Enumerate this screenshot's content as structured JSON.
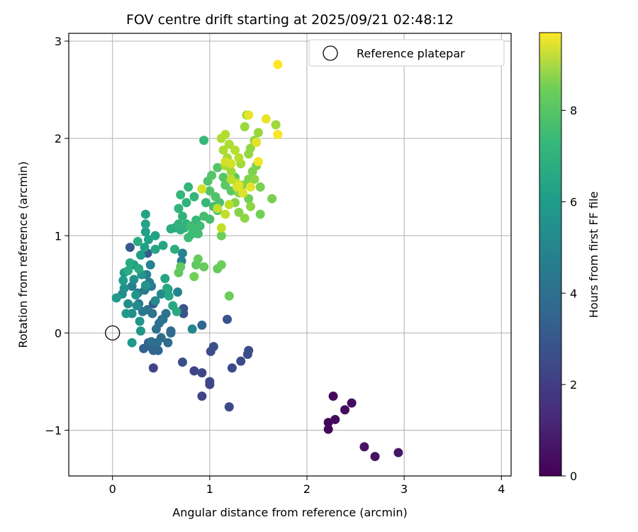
{
  "chart_data": {
    "type": "scatter",
    "title": "FOV centre drift starting at 2025/09/21 02:48:12",
    "xlabel": "Angular distance from reference (arcmin)",
    "ylabel": "Rotation from reference (arcmin)",
    "xlim": [
      -0.45,
      4.1
    ],
    "ylim": [
      -1.47,
      3.08
    ],
    "xticks": [
      0,
      1,
      2,
      3,
      4
    ],
    "xtick_labels": [
      "0",
      "1",
      "2",
      "3",
      "4"
    ],
    "yticks": [
      -1,
      0,
      1,
      2,
      3
    ],
    "ytick_labels": [
      "−1",
      "0",
      "1",
      "2",
      "3"
    ],
    "grid": true,
    "legend": {
      "position": "upper right",
      "entries": [
        "Reference platepar"
      ]
    },
    "reference_point": {
      "x": 0,
      "y": 0,
      "label": "Reference platepar"
    },
    "colorbar": {
      "label": "Hours from first FF file",
      "colormap": "viridis",
      "range": [
        0,
        9.7
      ],
      "ticks": [
        0,
        2,
        4,
        6,
        8
      ],
      "tick_labels": [
        "0",
        "2",
        "4",
        "6",
        "8"
      ]
    },
    "points": [
      [
        2.22,
        -0.92,
        0.1
      ],
      [
        2.22,
        -0.99,
        0.2
      ],
      [
        2.27,
        -0.65,
        0.2
      ],
      [
        2.29,
        -0.89,
        0.3
      ],
      [
        2.39,
        -0.79,
        0.3
      ],
      [
        2.46,
        -0.72,
        0.4
      ],
      [
        2.59,
        -1.17,
        0.5
      ],
      [
        2.7,
        -1.27,
        0.5
      ],
      [
        2.94,
        -1.23,
        0.6
      ],
      [
        0.42,
        -0.36,
        2.0
      ],
      [
        0.84,
        -0.39,
        2.0
      ],
      [
        0.92,
        -0.65,
        2.0
      ],
      [
        0.92,
        -0.41,
        2.1
      ],
      [
        1.0,
        -0.53,
        2.1
      ],
      [
        1.0,
        -0.5,
        2.1
      ],
      [
        1.2,
        -0.76,
        2.2
      ],
      [
        1.23,
        -0.36,
        2.2
      ],
      [
        1.32,
        -0.29,
        2.2
      ],
      [
        1.39,
        -0.22,
        2.3
      ],
      [
        1.4,
        -0.18,
        2.3
      ],
      [
        1.01,
        -0.19,
        2.3
      ],
      [
        1.04,
        -0.14,
        2.4
      ],
      [
        0.72,
        -0.3,
        2.4
      ],
      [
        1.18,
        0.14,
        2.5
      ],
      [
        0.73,
        0.25,
        2.5
      ],
      [
        0.73,
        0.2,
        2.6
      ],
      [
        0.51,
        0.14,
        2.6
      ],
      [
        0.18,
        0.88,
        2.7
      ],
      [
        0.36,
        0.82,
        2.7
      ],
      [
        0.42,
        0.3,
        2.7
      ],
      [
        0.32,
        -0.16,
        3.0
      ],
      [
        0.37,
        -0.1,
        3.0
      ],
      [
        0.42,
        -0.18,
        3.1
      ],
      [
        0.39,
        -0.14,
        3.1
      ],
      [
        0.47,
        -0.18,
        3.2
      ],
      [
        0.92,
        0.08,
        3.2
      ],
      [
        0.6,
        0.0,
        3.3
      ],
      [
        0.6,
        0.02,
        3.3
      ],
      [
        0.57,
        -0.1,
        3.4
      ],
      [
        0.5,
        -0.05,
        3.4
      ],
      [
        0.46,
        -0.1,
        3.5
      ],
      [
        0.4,
        -0.09,
        3.5
      ],
      [
        0.45,
        0.04,
        3.6
      ],
      [
        0.48,
        0.1,
        3.6
      ],
      [
        0.52,
        0.14,
        3.7
      ],
      [
        0.55,
        0.2,
        3.7
      ],
      [
        0.41,
        0.2,
        3.8
      ],
      [
        0.36,
        0.24,
        3.8
      ],
      [
        0.31,
        0.22,
        3.9
      ],
      [
        0.27,
        0.3,
        3.9
      ],
      [
        0.26,
        0.41,
        4.0
      ],
      [
        0.33,
        0.44,
        4.0
      ],
      [
        0.4,
        0.48,
        4.1
      ],
      [
        0.38,
        0.52,
        4.1
      ],
      [
        0.2,
        0.48,
        4.2
      ],
      [
        0.35,
        0.6,
        4.2
      ],
      [
        0.39,
        0.7,
        4.3
      ],
      [
        0.71,
        0.74,
        4.3
      ],
      [
        0.72,
        0.82,
        4.4
      ],
      [
        0.67,
        0.42,
        4.4
      ],
      [
        0.82,
        0.04,
        4.5
      ],
      [
        0.57,
        0.45,
        4.5
      ],
      [
        0.44,
        0.33,
        4.6
      ],
      [
        0.5,
        0.4,
        4.6
      ],
      [
        0.25,
        0.28,
        4.7
      ],
      [
        0.2,
        0.2,
        4.7
      ],
      [
        0.16,
        0.3,
        4.8
      ],
      [
        0.1,
        0.4,
        4.8
      ],
      [
        0.12,
        0.46,
        4.9
      ],
      [
        0.22,
        0.55,
        4.9
      ],
      [
        0.3,
        0.6,
        5.0
      ],
      [
        0.34,
        0.49,
        5.0
      ],
      [
        0.24,
        0.39,
        5.1
      ],
      [
        0.28,
        0.12,
        5.1
      ],
      [
        0.29,
        0.02,
        5.1
      ],
      [
        0.2,
        -0.1,
        5.2
      ],
      [
        0.14,
        0.2,
        5.2
      ],
      [
        0.04,
        0.36,
        5.3
      ],
      [
        0.11,
        0.54,
        5.3
      ],
      [
        0.12,
        0.62,
        5.3
      ],
      [
        0.22,
        0.7,
        5.4
      ],
      [
        0.29,
        0.8,
        5.4
      ],
      [
        0.33,
        0.88,
        5.5
      ],
      [
        0.37,
        0.96,
        5.5
      ],
      [
        0.34,
        1.04,
        5.5
      ],
      [
        0.34,
        1.12,
        5.6
      ],
      [
        0.34,
        1.22,
        5.6
      ],
      [
        0.44,
        1.0,
        5.6
      ],
      [
        0.44,
        0.86,
        5.7
      ],
      [
        0.52,
        0.9,
        5.7
      ],
      [
        0.54,
        0.56,
        5.7
      ],
      [
        0.56,
        0.46,
        5.8
      ],
      [
        0.58,
        0.38,
        5.8
      ],
      [
        0.62,
        0.28,
        5.8
      ],
      [
        0.66,
        0.22,
        5.9
      ],
      [
        0.27,
        0.66,
        5.9
      ],
      [
        0.18,
        0.72,
        5.9
      ],
      [
        0.16,
        0.64,
        6.0
      ],
      [
        0.26,
        0.94,
        6.0
      ],
      [
        0.6,
        1.07,
        6.0
      ],
      [
        0.64,
        1.08,
        6.1
      ],
      [
        0.64,
        0.86,
        6.1
      ],
      [
        0.7,
        1.06,
        6.1
      ],
      [
        0.74,
        1.08,
        6.2
      ],
      [
        0.76,
        1.12,
        6.2
      ],
      [
        0.68,
        1.12,
        6.2
      ],
      [
        0.72,
        1.2,
        6.3
      ],
      [
        0.68,
        1.28,
        6.3
      ],
      [
        0.76,
        1.34,
        6.3
      ],
      [
        0.7,
        1.42,
        6.4
      ],
      [
        0.78,
        1.5,
        6.4
      ],
      [
        0.84,
        1.4,
        6.4
      ],
      [
        0.96,
        1.34,
        6.5
      ],
      [
        0.94,
        1.98,
        6.5
      ],
      [
        0.86,
        1.16,
        6.5
      ],
      [
        0.84,
        1.08,
        6.6
      ],
      [
        0.82,
        1.02,
        6.6
      ],
      [
        0.78,
        0.98,
        6.6
      ],
      [
        0.8,
        1.1,
        6.7
      ],
      [
        0.88,
        1.02,
        6.7
      ],
      [
        0.9,
        1.1,
        6.7
      ],
      [
        0.94,
        1.2,
        6.8
      ],
      [
        1.0,
        1.17,
        6.8
      ],
      [
        1.04,
        1.3,
        6.8
      ],
      [
        1.08,
        1.26,
        6.9
      ],
      [
        1.1,
        1.34,
        6.9
      ],
      [
        1.06,
        1.4,
        7.0
      ],
      [
        1.0,
        1.46,
        7.0
      ],
      [
        0.98,
        1.56,
        7.0
      ],
      [
        1.02,
        1.62,
        7.1
      ],
      [
        1.08,
        1.7,
        7.1
      ],
      [
        1.14,
        1.6,
        7.1
      ],
      [
        1.16,
        1.52,
        7.2
      ],
      [
        1.22,
        1.46,
        7.2
      ],
      [
        1.26,
        1.6,
        7.2
      ],
      [
        0.68,
        0.62,
        7.3
      ],
      [
        0.7,
        0.68,
        7.3
      ],
      [
        0.86,
        0.7,
        7.3
      ],
      [
        0.88,
        0.76,
        7.4
      ],
      [
        0.94,
        0.68,
        7.4
      ],
      [
        1.08,
        0.66,
        7.4
      ],
      [
        1.12,
        0.7,
        7.5
      ],
      [
        1.12,
        1.0,
        7.5
      ],
      [
        1.2,
        0.38,
        7.5
      ],
      [
        0.84,
        0.58,
        7.6
      ],
      [
        1.4,
        1.38,
        7.6
      ],
      [
        1.52,
        1.22,
        7.6
      ],
      [
        1.52,
        1.5,
        7.7
      ],
      [
        1.64,
        1.38,
        7.7
      ],
      [
        1.48,
        1.72,
        7.7
      ],
      [
        1.44,
        1.66,
        7.8
      ],
      [
        1.4,
        1.58,
        7.8
      ],
      [
        1.34,
        1.52,
        7.8
      ],
      [
        1.3,
        1.44,
        7.9
      ],
      [
        1.26,
        1.34,
        7.9
      ],
      [
        1.3,
        1.24,
        7.9
      ],
      [
        1.36,
        1.18,
        8.0
      ],
      [
        1.42,
        1.3,
        8.0
      ],
      [
        1.46,
        1.58,
        8.0
      ],
      [
        1.4,
        1.84,
        8.1
      ],
      [
        1.42,
        1.9,
        8.1
      ],
      [
        1.46,
        1.98,
        8.1
      ],
      [
        1.36,
        2.12,
        8.2
      ],
      [
        1.38,
        2.24,
        8.2
      ],
      [
        1.5,
        2.06,
        8.2
      ],
      [
        1.68,
        2.14,
        8.3
      ],
      [
        1.32,
        1.74,
        8.3
      ],
      [
        1.22,
        1.66,
        8.3
      ],
      [
        1.16,
        1.72,
        8.4
      ],
      [
        1.18,
        1.8,
        8.4
      ],
      [
        1.14,
        1.88,
        8.5
      ],
      [
        1.2,
        1.94,
        8.5
      ],
      [
        1.12,
        2.0,
        8.5
      ],
      [
        1.16,
        2.04,
        8.6
      ],
      [
        1.26,
        1.88,
        8.6
      ],
      [
        1.3,
        1.8,
        8.6
      ],
      [
        1.22,
        1.58,
        8.7
      ],
      [
        1.28,
        1.54,
        8.7
      ],
      [
        1.2,
        1.32,
        8.7
      ],
      [
        1.16,
        1.22,
        8.8
      ],
      [
        1.08,
        1.28,
        8.8
      ],
      [
        1.12,
        1.08,
        8.8
      ],
      [
        0.92,
        1.48,
        9.0
      ],
      [
        1.16,
        1.76,
        9.0
      ],
      [
        1.22,
        1.74,
        9.1
      ],
      [
        1.28,
        1.5,
        9.1
      ],
      [
        1.34,
        1.44,
        9.2
      ],
      [
        1.3,
        1.52,
        9.2
      ],
      [
        1.42,
        1.5,
        9.3
      ],
      [
        1.48,
        1.96,
        9.3
      ],
      [
        1.4,
        2.24,
        9.4
      ],
      [
        1.58,
        2.2,
        9.4
      ],
      [
        1.5,
        1.76,
        9.5
      ],
      [
        1.7,
        2.04,
        9.6
      ],
      [
        1.7,
        2.76,
        9.7
      ]
    ]
  }
}
